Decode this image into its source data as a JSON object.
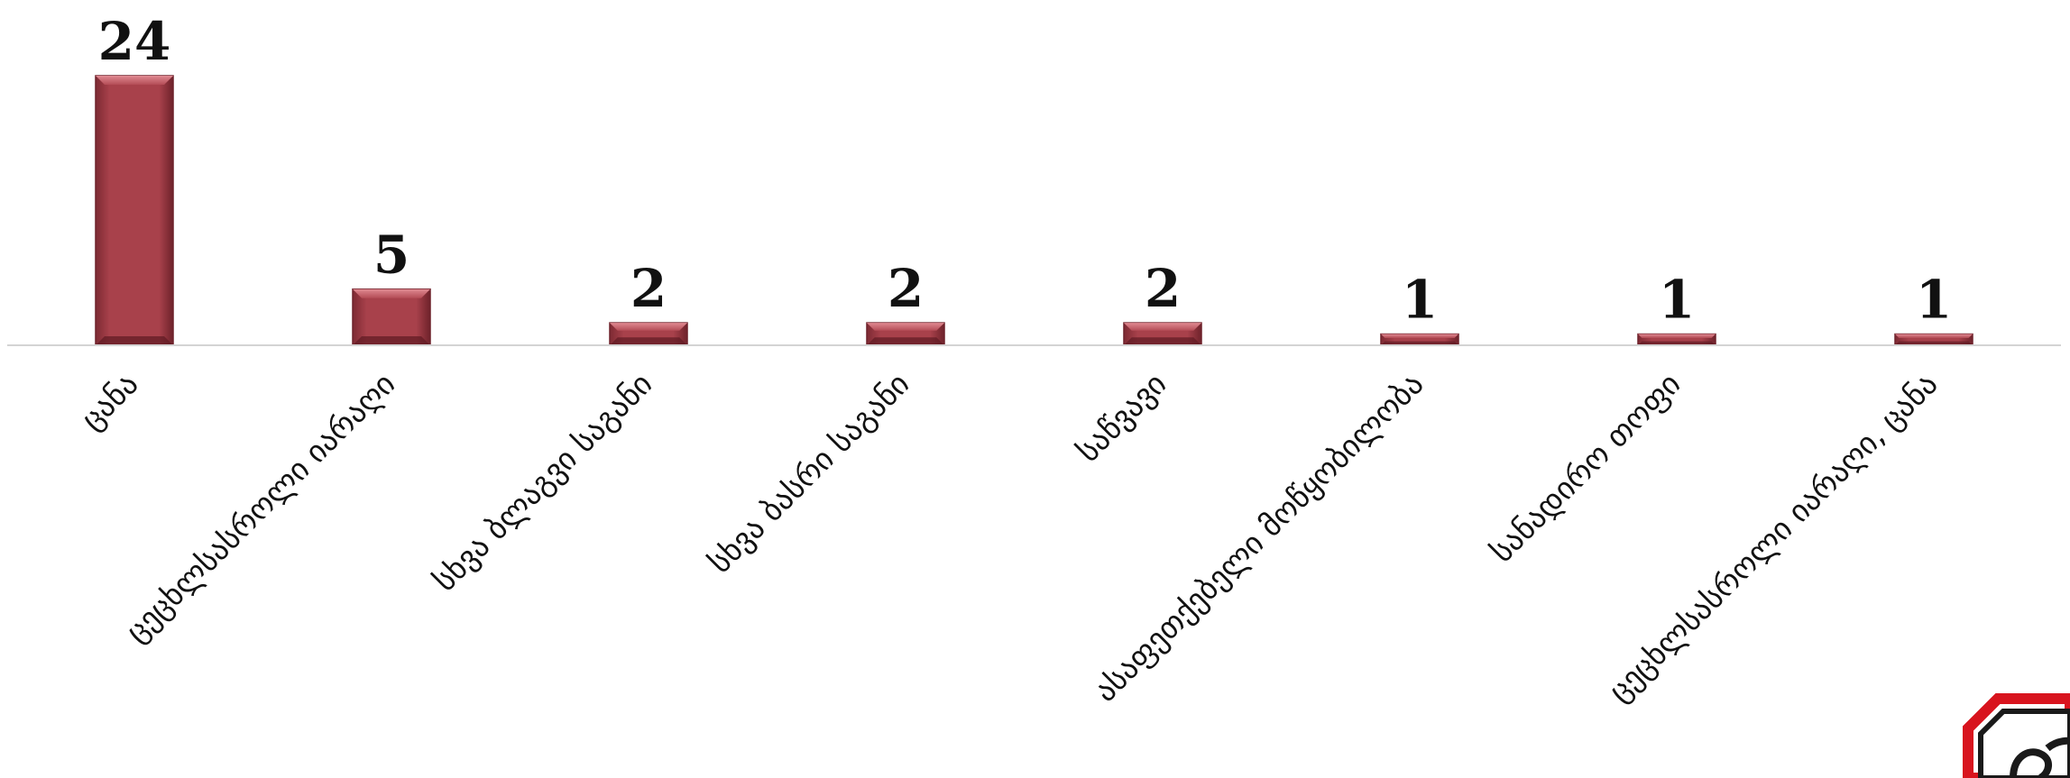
{
  "chart_data": {
    "type": "bar",
    "categories": [
      "ცანა",
      "ცეცხლსასროლი იარაღი",
      "სხვა ბლაგვი საგანი",
      "სხვა ბასრი საგანი",
      "საწვავი",
      "ასაფეთქებელი მოწყობილობა",
      "სანადირო თოფი",
      "ცეცხლსასროლი იარაღი, ცანა"
    ],
    "values": [
      24,
      5,
      2,
      2,
      2,
      1,
      1,
      1
    ],
    "title": "",
    "xlabel": "",
    "ylabel": "",
    "ylim": [
      0,
      24
    ],
    "grid": false,
    "legend": "none",
    "data_labels": true
  },
  "colors": {
    "bar": "#a8414b",
    "bar_dark": "#6e222b",
    "bar_light": "#cf6a73",
    "axis": "#d4d4d4",
    "badge_red": "#d8141e"
  },
  "logo": {
    "icon": "octagon-logo-icon"
  }
}
